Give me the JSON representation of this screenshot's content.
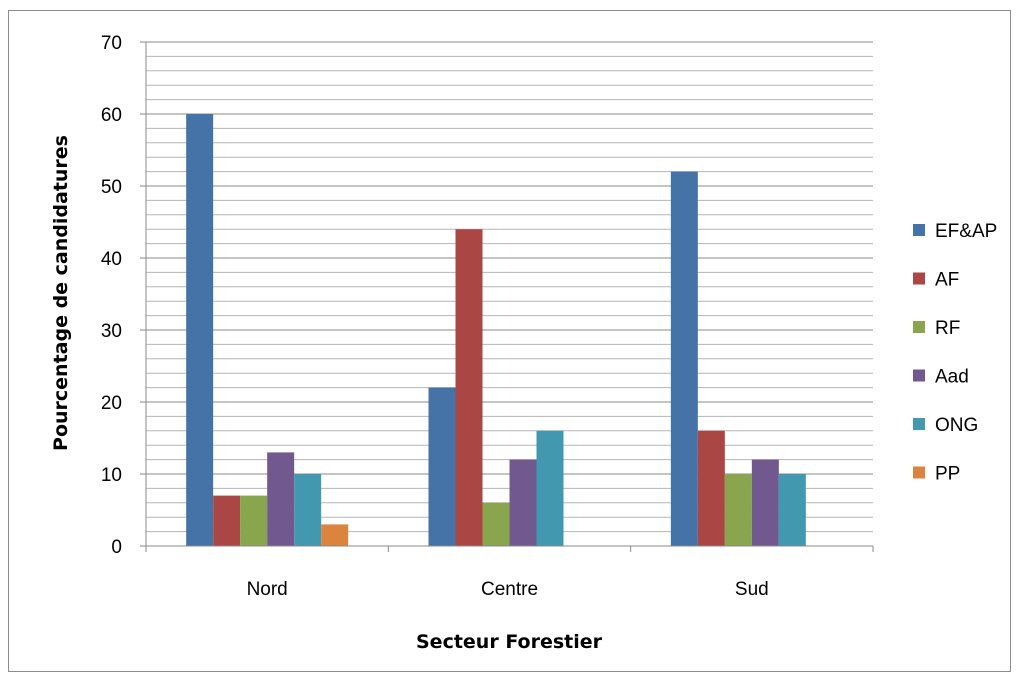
{
  "chart_data": {
    "type": "bar",
    "title": "",
    "xlabel": "Secteur Forestier",
    "ylabel": "Pourcentage de candidatures",
    "ylim": [
      0,
      70
    ],
    "y_major_ticks": [
      0,
      10,
      20,
      30,
      40,
      50,
      60,
      70
    ],
    "y_minor_step": 2,
    "grid": true,
    "legend_position": "right",
    "categories": [
      "Nord",
      "Centre",
      "Sud"
    ],
    "series": [
      {
        "name": "EF&AP",
        "color": "#4572A7",
        "values": [
          60,
          22,
          52
        ]
      },
      {
        "name": "AF",
        "color": "#AA4643",
        "values": [
          7,
          44,
          16
        ]
      },
      {
        "name": "RF",
        "color": "#89A54E",
        "values": [
          7,
          6,
          10
        ]
      },
      {
        "name": "Aad",
        "color": "#71588F",
        "values": [
          13,
          12,
          12
        ]
      },
      {
        "name": "ONG",
        "color": "#4198AF",
        "values": [
          10,
          16,
          10
        ]
      },
      {
        "name": "PP",
        "color": "#DB843D",
        "values": [
          3,
          null,
          null
        ]
      }
    ]
  }
}
